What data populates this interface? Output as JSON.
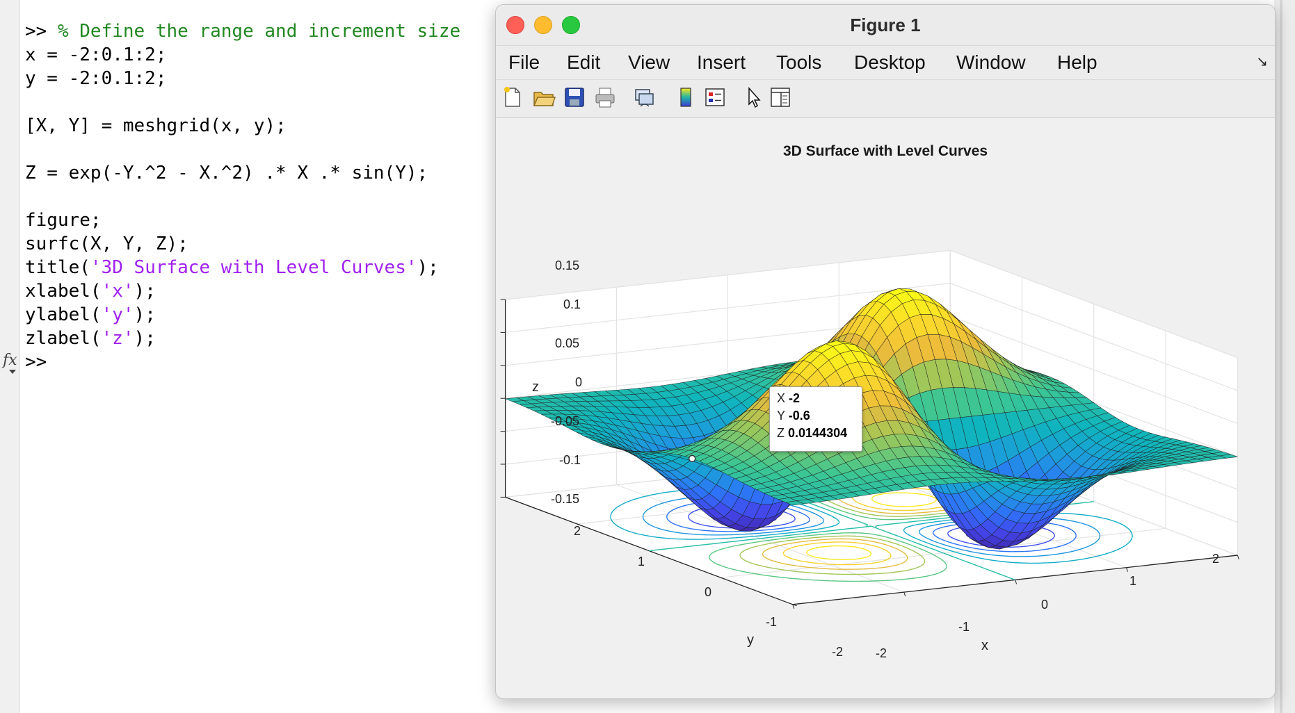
{
  "console": {
    "prompt": ">>",
    "lines": {
      "l1_comment": "% Define the range and increment size",
      "l2": "x = -2:0.1:2;",
      "l3": "y = -2:0.1:2;",
      "l4": "[X, Y] = meshgrid(x, y);",
      "l5": "Z = exp(-Y.^2 - X.^2) .* X .* sin(Y);",
      "l6": "figure;",
      "l7": "surfc(X, Y, Z);",
      "l8_pre": "title(",
      "l8_str": "'3D Surface with Level Curves'",
      "l8_post": ");",
      "l9_pre": "xlabel(",
      "l9_str": "'x'",
      "l9_post": ");",
      "l10_pre": "ylabel(",
      "l10_str": "'y'",
      "l10_post": ");",
      "l11_pre": "zlabel(",
      "l11_str": "'z'",
      "l11_post": ");"
    },
    "fx_symbol": "fx",
    "colors": {
      "comment": "#228822",
      "string": "#a020f0"
    }
  },
  "figure_window": {
    "title": "Figure 1",
    "menu": [
      "File",
      "Edit",
      "View",
      "Insert",
      "Tools",
      "Desktop",
      "Window",
      "Help"
    ],
    "dock_glyph": "↘",
    "toolbar_icons": [
      "new-figure-icon",
      "open-file-icon",
      "save-icon",
      "print-icon",
      "link-plot-icon",
      "colorbar-icon",
      "legend-icon",
      "edit-plot-pointer-icon",
      "property-inspector-icon"
    ]
  },
  "plot": {
    "title": "3D Surface with Level Curves",
    "zlabel": "z",
    "ylabel": "y",
    "xlabel": "x",
    "zticks": [
      "0.15",
      "0.1",
      "0.05",
      "0",
      "-0.05",
      "-0.1",
      "-0.15"
    ],
    "yticks": [
      "2",
      "1",
      "0",
      "-1",
      "-2"
    ],
    "xticks": [
      "-2",
      "-1",
      "0",
      "1",
      "2"
    ],
    "colormap": "parula",
    "datatip": {
      "x_label": "X",
      "x_value": "-2",
      "y_label": "Y",
      "y_value": "-0.6",
      "z_label": "Z",
      "z_value": "0.0144304"
    }
  },
  "chart_data": {
    "type": "surface",
    "title": "3D Surface with Level Curves",
    "xlabel": "x",
    "ylabel": "y",
    "zlabel": "z",
    "function": "Z = exp(-Y.^2 - X.^2) .* X .* sin(Y)",
    "x_range": [
      -2,
      2
    ],
    "y_range": [
      -2,
      2
    ],
    "step": 0.1,
    "zlim": [
      -0.15,
      0.15
    ],
    "contours_below": true,
    "grid": true
  }
}
